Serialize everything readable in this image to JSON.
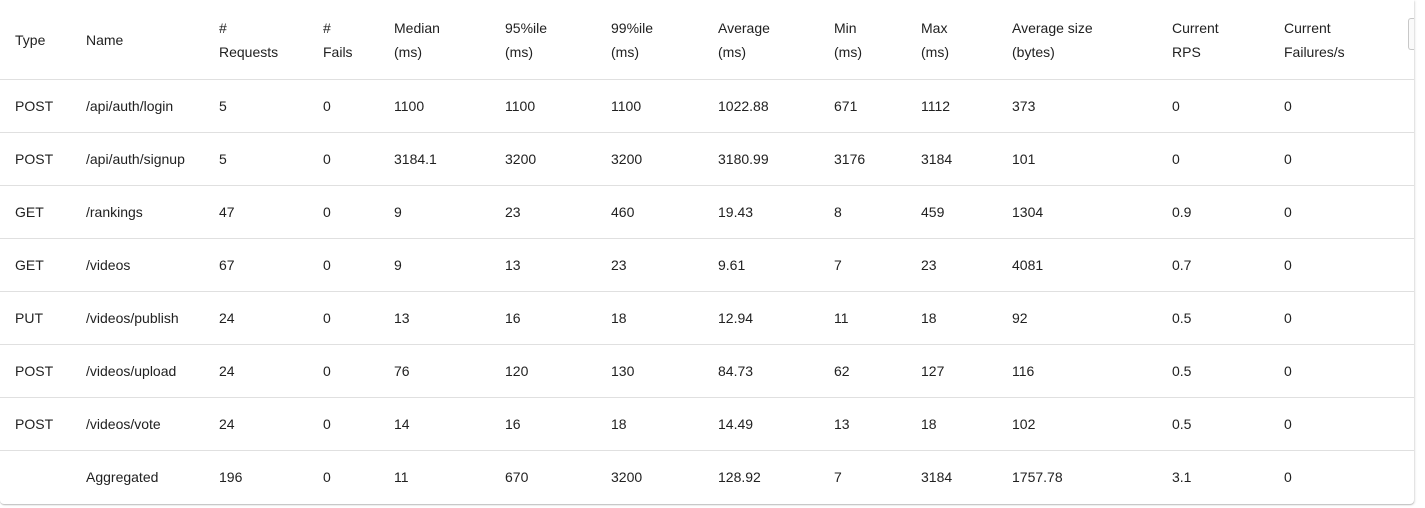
{
  "table": {
    "headers": [
      {
        "line1": "Type",
        "line2": ""
      },
      {
        "line1": "Name",
        "line2": ""
      },
      {
        "line1": "#",
        "line2": "Requests"
      },
      {
        "line1": "#",
        "line2": "Fails"
      },
      {
        "line1": "Median",
        "line2": "(ms)"
      },
      {
        "line1": "95%ile",
        "line2": "(ms)"
      },
      {
        "line1": "99%ile",
        "line2": "(ms)"
      },
      {
        "line1": "Average",
        "line2": "(ms)"
      },
      {
        "line1": "Min",
        "line2": "(ms)"
      },
      {
        "line1": "Max",
        "line2": "(ms)"
      },
      {
        "line1": "Average size",
        "line2": "(bytes)"
      },
      {
        "line1": "Current",
        "line2": "RPS"
      },
      {
        "line1": "Current",
        "line2": "Failures/s"
      }
    ],
    "rows": [
      [
        "POST",
        "/api/auth/login",
        "5",
        "0",
        "1100",
        "1100",
        "1100",
        "1022.88",
        "671",
        "1112",
        "373",
        "0",
        "0"
      ],
      [
        "POST",
        "/api/auth/signup",
        "5",
        "0",
        "3184.1",
        "3200",
        "3200",
        "3180.99",
        "3176",
        "3184",
        "101",
        "0",
        "0"
      ],
      [
        "GET",
        "/rankings",
        "47",
        "0",
        "9",
        "23",
        "460",
        "19.43",
        "8",
        "459",
        "1304",
        "0.9",
        "0"
      ],
      [
        "GET",
        "/videos",
        "67",
        "0",
        "9",
        "13",
        "23",
        "9.61",
        "7",
        "23",
        "4081",
        "0.7",
        "0"
      ],
      [
        "PUT",
        "/videos/publish",
        "24",
        "0",
        "13",
        "16",
        "18",
        "12.94",
        "11",
        "18",
        "92",
        "0.5",
        "0"
      ],
      [
        "POST",
        "/videos/upload",
        "24",
        "0",
        "76",
        "120",
        "130",
        "84.73",
        "62",
        "127",
        "116",
        "0.5",
        "0"
      ],
      [
        "POST",
        "/videos/vote",
        "24",
        "0",
        "14",
        "16",
        "18",
        "14.49",
        "13",
        "18",
        "102",
        "0.5",
        "0"
      ],
      [
        "",
        "Aggregated",
        "196",
        "0",
        "11",
        "670",
        "3200",
        "128.92",
        "7",
        "3184",
        "1757.78",
        "3.1",
        "0"
      ]
    ]
  }
}
